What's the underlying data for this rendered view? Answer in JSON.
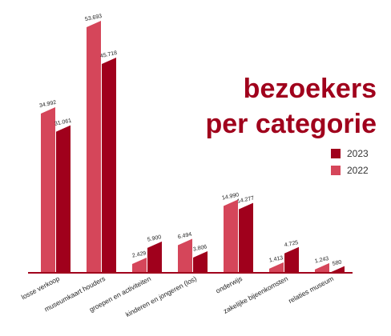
{
  "chart_data": {
    "type": "bar",
    "title": [
      "bezoekers",
      "per categorie"
    ],
    "categories": [
      "losse verkoop",
      "museumkaart houders",
      "groepen en activiteiten",
      "kinderen en jongeren (los)",
      "onderwijs",
      "zakelijke bijeenkomsten",
      "relaties museum"
    ],
    "series": [
      {
        "name": "2022",
        "color": "#d5465a",
        "values": [
          34992,
          53693,
          2429,
          6494,
          14990,
          1413,
          1243
        ],
        "value_labels": [
          "34.992",
          "53.693",
          "2.429",
          "6.494",
          "14.990",
          "1.413",
          "1.243"
        ]
      },
      {
        "name": "2023",
        "color": "#a0001c",
        "values": [
          31061,
          45718,
          5900,
          3806,
          14277,
          4725,
          580
        ],
        "value_labels": [
          "31.061",
          "45.718",
          "5.900",
          "3.806",
          "14.277",
          "4.725",
          "580"
        ]
      }
    ]
  }
}
